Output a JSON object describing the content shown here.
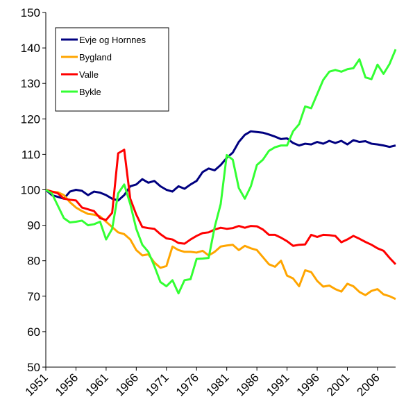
{
  "chart_data": {
    "type": "line",
    "x": [
      1951,
      1952,
      1953,
      1954,
      1955,
      1956,
      1957,
      1958,
      1959,
      1960,
      1961,
      1962,
      1963,
      1964,
      1965,
      1966,
      1967,
      1968,
      1969,
      1970,
      1971,
      1972,
      1973,
      1974,
      1975,
      1976,
      1977,
      1978,
      1979,
      1980,
      1981,
      1982,
      1983,
      1984,
      1985,
      1986,
      1987,
      1988,
      1989,
      1990,
      1991,
      1992,
      1993,
      1994,
      1995,
      1996,
      1997,
      1998,
      1999,
      2000,
      2001,
      2002,
      2003,
      2004,
      2005,
      2006,
      2007,
      2008,
      2009
    ],
    "xlim": [
      1951,
      2009
    ],
    "xticks": [
      1951,
      1956,
      1961,
      1966,
      1971,
      1976,
      1981,
      1986,
      1991,
      1996,
      2001,
      2006
    ],
    "ylim": [
      50,
      150
    ],
    "yticks": [
      50,
      60,
      70,
      80,
      90,
      100,
      110,
      120,
      130,
      140,
      150
    ],
    "legend": "top-left",
    "series": [
      {
        "name": "Evje og Hornnes",
        "color": "#000080",
        "values": [
          100,
          98.5,
          98,
          97.5,
          99.5,
          100,
          99.7,
          98.5,
          99.5,
          99.2,
          98.5,
          97.5,
          97,
          98.5,
          101,
          101.5,
          103,
          102,
          102.5,
          101,
          100,
          99.5,
          101,
          100.3,
          101.5,
          102.5,
          105,
          106,
          105.5,
          107,
          109,
          110.5,
          113.5,
          115.5,
          116.5,
          116.3,
          116.1,
          115.6,
          115,
          114.3,
          114.5,
          113.2,
          112.5,
          113,
          112.8,
          113.5,
          113,
          113.8,
          113.2,
          113.8,
          112.8,
          114,
          113.5,
          113.7,
          113,
          112.8,
          112.5,
          112.1,
          112.5
        ]
      },
      {
        "name": "Bygland",
        "color": "#ffa500",
        "values": [
          100,
          99.5,
          99.3,
          98.5,
          96.5,
          95,
          94,
          93.2,
          93,
          92.5,
          91,
          89.5,
          88,
          87.5,
          86,
          83,
          81.5,
          81.8,
          79.5,
          78,
          78.5,
          84,
          83,
          82.5,
          82.5,
          82.3,
          82.8,
          81.5,
          82.5,
          84,
          84.3,
          84.5,
          83,
          84.2,
          83.5,
          83,
          81,
          79,
          78.3,
          80,
          75.8,
          75,
          72.8,
          77.3,
          76.8,
          74.3,
          72.7,
          73,
          72,
          71.3,
          73.5,
          72.8,
          71.2,
          70.3,
          71.5,
          72,
          70.5,
          70,
          69.2
        ]
      },
      {
        "name": "Valle",
        "color": "#ff0000",
        "values": [
          100,
          99.5,
          99,
          97.5,
          97.2,
          97,
          95,
          94.5,
          94,
          92,
          91.5,
          93.5,
          110.3,
          111.3,
          97.5,
          93,
          89.5,
          89.2,
          89,
          87.5,
          86.3,
          86,
          85,
          84.8,
          86,
          87,
          87.8,
          88,
          88.8,
          89.3,
          89,
          89.2,
          89.8,
          89.3,
          89.8,
          89.7,
          88.8,
          87.3,
          87.3,
          86.5,
          85.5,
          84.2,
          84.5,
          84.6,
          87.3,
          86.7,
          87.3,
          87.2,
          87,
          85.2,
          86,
          87,
          86.2,
          85.3,
          84.5,
          83.5,
          82.8,
          80.8,
          79
        ]
      },
      {
        "name": "Bykle",
        "color": "#33ff33",
        "values": [
          100,
          99,
          95.5,
          92,
          90.8,
          91,
          91.3,
          90,
          90.3,
          91,
          86,
          89,
          99,
          101.5,
          96,
          89,
          84.5,
          82.5,
          78.5,
          74,
          72.8,
          74.5,
          70.8,
          74.5,
          74.8,
          80.5,
          80.6,
          80.8,
          89.5,
          96,
          109.8,
          108.5,
          100.5,
          97.5,
          101,
          107,
          108.5,
          111,
          112,
          112.5,
          112.5,
          116.5,
          118.5,
          123.5,
          123,
          127,
          131,
          133.3,
          133.8,
          133.3,
          134,
          134.3,
          136.8,
          131.7,
          131.2,
          135.3,
          132.7,
          135.5,
          139.6
        ]
      }
    ]
  }
}
